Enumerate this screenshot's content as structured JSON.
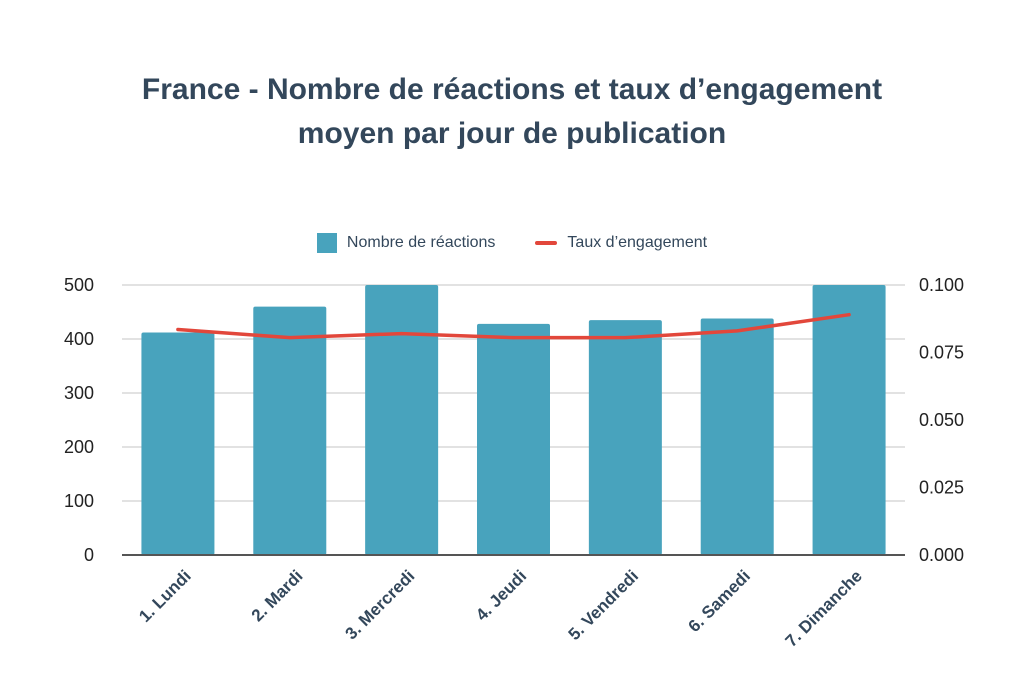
{
  "chart_data": {
    "type": "bar",
    "title_line1": "France - Nombre de réactions et taux d’engagement",
    "title_line2": "moyen par jour de publication",
    "categories": [
      "1. Lundi",
      "2. Mardi",
      "3. Mercredi",
      "4. Jeudi",
      "5. Vendredi",
      "6. Samedi",
      "7. Dimanche"
    ],
    "series": [
      {
        "name": "Nombre de réactions",
        "type": "bar",
        "axis": "left",
        "values": [
          412,
          460,
          500,
          428,
          435,
          438,
          500
        ]
      },
      {
        "name": "Taux d’engagement",
        "type": "line",
        "axis": "right",
        "values": [
          0.0835,
          0.0805,
          0.082,
          0.0805,
          0.0805,
          0.083,
          0.089
        ]
      }
    ],
    "y_left": {
      "ticks": [
        "0",
        "100",
        "200",
        "300",
        "400",
        "500"
      ],
      "ylim": [
        0,
        500
      ]
    },
    "y_right": {
      "ticks": [
        "0.000",
        "0.025",
        "0.050",
        "0.075",
        "0.100"
      ],
      "ylim": [
        0,
        0.1
      ]
    },
    "grid": true,
    "legend_position": "top-center",
    "colors": {
      "bar": "#48a3bd",
      "line": "#e2473b",
      "grid": "#d9d9d9",
      "axis": "#555555"
    }
  }
}
